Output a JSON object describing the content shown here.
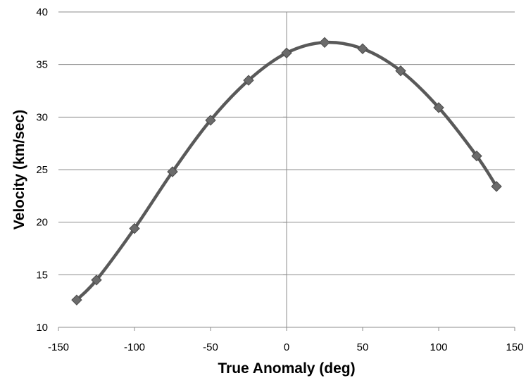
{
  "chart_data": {
    "type": "scatter",
    "title": "",
    "xlabel": "True Anomaly (deg)",
    "ylabel": "Velocity (km/sec)",
    "xlim": [
      -150,
      150
    ],
    "ylim": [
      10,
      40
    ],
    "x_ticks": [
      -150,
      -100,
      -50,
      0,
      50,
      100,
      150
    ],
    "y_ticks": [
      10,
      15,
      20,
      25,
      30,
      35,
      40
    ],
    "grid": "horizontal major gridlines",
    "line_style": "smoothed line with diamond markers",
    "series": [
      {
        "color": "#595959",
        "marker": "diamond",
        "x": [
          -138,
          -125,
          -100,
          -75,
          -50,
          -25,
          0,
          25,
          50,
          75,
          100,
          125,
          138
        ],
        "y": [
          12.6,
          14.5,
          19.4,
          24.8,
          29.7,
          33.5,
          36.1,
          37.1,
          36.5,
          34.4,
          30.9,
          26.3,
          23.4
        ]
      }
    ]
  }
}
